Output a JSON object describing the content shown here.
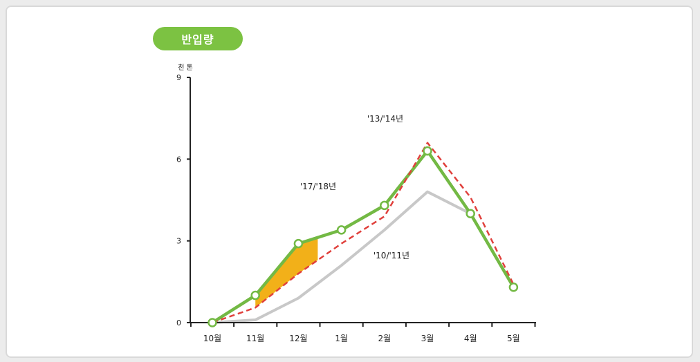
{
  "header": {
    "badge_label": "반입량"
  },
  "chart_data": {
    "type": "line",
    "unit_label": "천 톤",
    "categories": [
      "10월",
      "11월",
      "12월",
      "1월",
      "2월",
      "3월",
      "4월",
      "5월"
    ],
    "yticks": [
      0,
      3,
      6,
      9
    ],
    "ylim": [
      0,
      9
    ],
    "series": [
      {
        "name": "'17/'18년",
        "values": [
          0,
          1.0,
          2.9,
          3.4,
          4.3,
          6.3,
          4.0,
          1.3
        ],
        "style": "solid-markers"
      },
      {
        "name": "'13/'14년",
        "values": [
          0,
          0.55,
          1.8,
          2.9,
          3.9,
          6.6,
          4.6,
          1.4
        ],
        "style": "dashed"
      },
      {
        "name": "'10/'11년",
        "values": [
          0,
          0.1,
          0.9,
          2.1,
          3.4,
          4.8,
          4.0,
          null
        ],
        "style": "solid"
      }
    ],
    "highlight": {
      "from": "11월",
      "to": "12월"
    },
    "colors": {
      "badge": "#7cc242",
      "s1718": "#73b944",
      "s1314": "#e0403c",
      "s1011": "#c8c8c8",
      "highlight": "#f2b019",
      "axis": "#222222"
    }
  }
}
